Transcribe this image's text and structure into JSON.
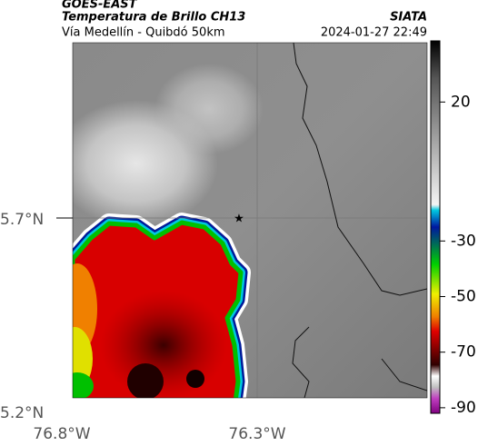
{
  "header": {
    "satellite": "GOES-EAST",
    "title": "Temperatura de Brillo CH13",
    "source": "SIATA",
    "subtitle": "Vía Medellín - Quibdó 50km",
    "datetime": "2024-01-27 22:49"
  },
  "map": {
    "lat_labels": [
      "5.7°N",
      "5.2°N"
    ],
    "lon_labels": [
      "76.8°W",
      "76.3°W"
    ]
  },
  "colorbar": {
    "range": [
      -92,
      42
    ],
    "ticks": [
      20,
      -30,
      -50,
      -70,
      -90
    ]
  }
}
